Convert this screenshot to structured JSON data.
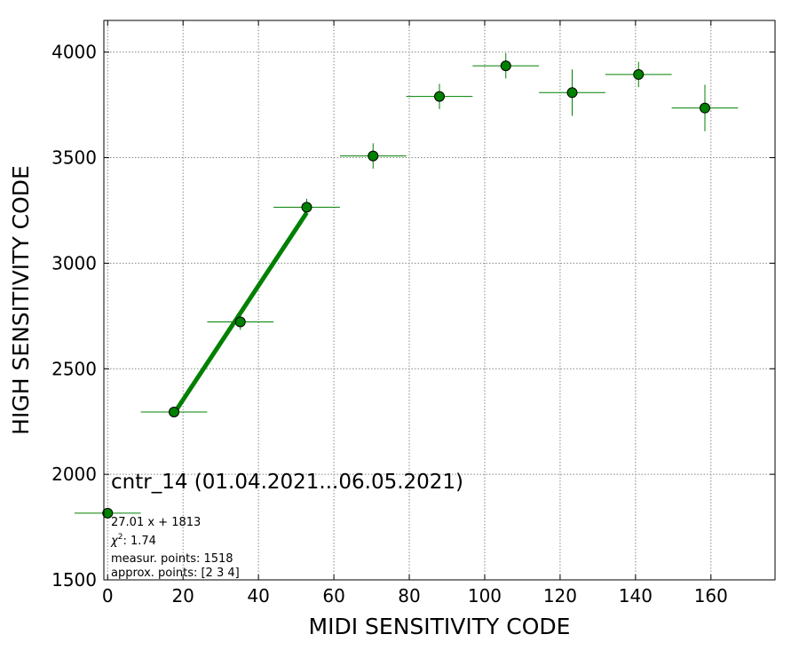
{
  "chart_data": {
    "type": "scatter",
    "title": "cntr_14 (01.04.2021...06.05.2021)",
    "xlabel": "MIDI SENSITIVITY CODE",
    "ylabel": "HIGH SENSITIVITY CODE",
    "xlim": [
      -1,
      177
    ],
    "ylim": [
      1500,
      4150
    ],
    "xticks": [
      0,
      20,
      40,
      60,
      80,
      100,
      120,
      140,
      160
    ],
    "yticks": [
      1500,
      2000,
      2500,
      3000,
      3500,
      4000
    ],
    "grid": true,
    "color": "#008000",
    "points": [
      {
        "x": 0,
        "y": 1816,
        "xerr": 8.8,
        "yerr": 0
      },
      {
        "x": 17.6,
        "y": 2295,
        "xerr": 8.8,
        "yerr": 10
      },
      {
        "x": 35.2,
        "y": 2722,
        "xerr": 8.8,
        "yerr": 38
      },
      {
        "x": 52.8,
        "y": 3265,
        "xerr": 8.8,
        "yerr": 40
      },
      {
        "x": 70.4,
        "y": 3508,
        "xerr": 8.8,
        "yerr": 60
      },
      {
        "x": 88.0,
        "y": 3790,
        "xerr": 8.8,
        "yerr": 60
      },
      {
        "x": 105.6,
        "y": 3935,
        "xerr": 8.8,
        "yerr": 60
      },
      {
        "x": 123.2,
        "y": 3808,
        "xerr": 8.8,
        "yerr": 110
      },
      {
        "x": 140.8,
        "y": 3894,
        "xerr": 8.8,
        "yerr": 60
      },
      {
        "x": 158.4,
        "y": 3735,
        "xerr": 8.8,
        "yerr": 110
      }
    ],
    "fit_line": {
      "slope": 27.01,
      "intercept": 1813,
      "x_range": [
        17.6,
        52.8
      ]
    },
    "annotations": {
      "equation": "27.01 x + 1813",
      "chi2_symbol": "χ",
      "chi2_power": "2",
      "chi2_value": ": 1.74",
      "measur_points": "measur. points: 1518",
      "approx_points": "approx. points: [2 3 4]"
    }
  }
}
